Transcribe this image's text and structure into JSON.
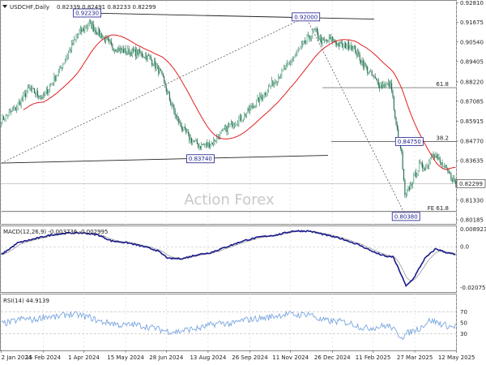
{
  "header": {
    "symbol": "USDCHF,Daily",
    "ohlc": "0.82339 0.82491 0.82233 0.82299"
  },
  "watermark": "Action Forex",
  "colors": {
    "bull": "#7dc6a4",
    "bear": "#1f6b4a",
    "ma": "#e02020",
    "macd": "#1a1a8c",
    "signal": "#9a9a9a",
    "rsi": "#7aa6e0",
    "box": "#1a1a8c",
    "grid": "#999999"
  },
  "chart_data": [
    {
      "type": "candlestick",
      "panel": "price",
      "x_ticks": [
        "2 Jan 2024",
        "15 Feb 2024",
        "1 Apr 2024",
        "15 May 2024",
        "28 Jun 2024",
        "13 Aug 2024",
        "26 Sep 2024",
        "11 Nov 2024",
        "26 Dec 2024",
        "11 Feb 2025",
        "27 Mar 2025",
        "12 May 2025"
      ],
      "y_ticks": [
        "0.92810",
        "0.91675",
        "0.90540",
        "0.89405",
        "0.88220",
        "0.87085",
        "0.85915",
        "0.84770",
        "0.83635",
        "0.82299",
        "0.81330",
        "0.80185"
      ],
      "ylim": [
        0.7995,
        0.9289
      ],
      "last_price": "0.82299",
      "close_anchors": [
        [
          0,
          0.86
        ],
        [
          12,
          0.866
        ],
        [
          25,
          0.878
        ],
        [
          38,
          0.873
        ],
        [
          52,
          0.888
        ],
        [
          60,
          0.898
        ],
        [
          70,
          0.91
        ],
        [
          80,
          0.916
        ],
        [
          90,
          0.91
        ],
        [
          100,
          0.903
        ],
        [
          112,
          0.9
        ],
        [
          125,
          0.899
        ],
        [
          135,
          0.896
        ],
        [
          145,
          0.887
        ],
        [
          153,
          0.872
        ],
        [
          160,
          0.86
        ],
        [
          170,
          0.85
        ],
        [
          180,
          0.845
        ],
        [
          190,
          0.846
        ],
        [
          200,
          0.852
        ],
        [
          210,
          0.858
        ],
        [
          220,
          0.862
        ],
        [
          230,
          0.869
        ],
        [
          240,
          0.876
        ],
        [
          250,
          0.884
        ],
        [
          260,
          0.891
        ],
        [
          270,
          0.9
        ],
        [
          280,
          0.908
        ],
        [
          285,
          0.912
        ],
        [
          292,
          0.905
        ],
        [
          300,
          0.907
        ],
        [
          310,
          0.903
        ],
        [
          318,
          0.904
        ],
        [
          325,
          0.897
        ],
        [
          335,
          0.887
        ],
        [
          345,
          0.88
        ],
        [
          352,
          0.881
        ],
        [
          355,
          0.879
        ],
        [
          358,
          0.86
        ],
        [
          364,
          0.84
        ],
        [
          367,
          0.815
        ],
        [
          372,
          0.822
        ],
        [
          380,
          0.833
        ],
        [
          387,
          0.833
        ],
        [
          392,
          0.842
        ],
        [
          398,
          0.836
        ],
        [
          405,
          0.83
        ],
        [
          410,
          0.826
        ],
        [
          413,
          0.823
        ]
      ],
      "annotations": [
        {
          "label": "0.92230",
          "x": 78,
          "y": 0.9223
        },
        {
          "label": "0.92000",
          "x": 277,
          "y": 0.92
        },
        {
          "label": "0.83740",
          "x": 181,
          "y": 0.8374
        },
        {
          "label": "0.84750",
          "x": 371,
          "y": 0.8475
        },
        {
          "label": "0.80380",
          "x": 368,
          "y": 0.8038
        }
      ],
      "levels": [
        {
          "label": "61.8",
          "y": 0.8788,
          "x0": 292
        },
        {
          "label": "38.2",
          "y": 0.8475,
          "x0": 300
        },
        {
          "label": "FE 61.8",
          "y": 0.8067,
          "x0": 0
        }
      ]
    },
    {
      "type": "line",
      "panel": "macd",
      "title": "MACD(12,26,9) -0.003736 -0.002995",
      "y_ticks": [
        "0.008923",
        "0.0",
        "-0.020759"
      ],
      "ylim": [
        -0.023,
        0.01
      ],
      "macd_anchors": [
        [
          0,
          -0.004
        ],
        [
          15,
          0.002
        ],
        [
          30,
          0.004
        ],
        [
          45,
          0.006
        ],
        [
          60,
          0.007
        ],
        [
          75,
          0.007
        ],
        [
          88,
          0.006
        ],
        [
          100,
          0.003
        ],
        [
          115,
          0.002
        ],
        [
          130,
          0.0
        ],
        [
          142,
          -0.002
        ],
        [
          152,
          -0.006
        ],
        [
          165,
          -0.006
        ],
        [
          178,
          -0.004
        ],
        [
          190,
          -0.003
        ],
        [
          205,
          0.0
        ],
        [
          220,
          0.003
        ],
        [
          235,
          0.005
        ],
        [
          250,
          0.006
        ],
        [
          265,
          0.008
        ],
        [
          280,
          0.008
        ],
        [
          295,
          0.006
        ],
        [
          310,
          0.004
        ],
        [
          325,
          0.001
        ],
        [
          340,
          -0.003
        ],
        [
          350,
          -0.005
        ],
        [
          356,
          -0.005
        ],
        [
          362,
          -0.012
        ],
        [
          368,
          -0.02
        ],
        [
          375,
          -0.016
        ],
        [
          385,
          -0.006
        ],
        [
          395,
          -0.001
        ],
        [
          405,
          -0.003
        ],
        [
          413,
          -0.004
        ]
      ]
    },
    {
      "type": "line",
      "panel": "rsi",
      "title": "RSI(14) 44.9139",
      "y_ticks": [
        "70",
        "50",
        "30"
      ],
      "ylim": [
        0,
        100
      ],
      "rsi_anchors": [
        [
          0,
          48
        ],
        [
          10,
          52
        ],
        [
          20,
          58
        ],
        [
          30,
          55
        ],
        [
          40,
          62
        ],
        [
          50,
          60
        ],
        [
          60,
          66
        ],
        [
          70,
          64
        ],
        [
          80,
          60
        ],
        [
          90,
          52
        ],
        [
          100,
          50
        ],
        [
          110,
          45
        ],
        [
          120,
          47
        ],
        [
          130,
          44
        ],
        [
          140,
          40
        ],
        [
          150,
          35
        ],
        [
          160,
          34
        ],
        [
          170,
          38
        ],
        [
          180,
          40
        ],
        [
          190,
          46
        ],
        [
          200,
          50
        ],
        [
          210,
          48
        ],
        [
          220,
          55
        ],
        [
          230,
          57
        ],
        [
          240,
          59
        ],
        [
          250,
          63
        ],
        [
          260,
          66
        ],
        [
          270,
          64
        ],
        [
          280,
          67
        ],
        [
          290,
          55
        ],
        [
          300,
          53
        ],
        [
          310,
          52
        ],
        [
          320,
          48
        ],
        [
          330,
          40
        ],
        [
          340,
          42
        ],
        [
          350,
          45
        ],
        [
          355,
          42
        ],
        [
          360,
          30
        ],
        [
          365,
          25
        ],
        [
          370,
          32
        ],
        [
          380,
          40
        ],
        [
          390,
          55
        ],
        [
          400,
          48
        ],
        [
          410,
          42
        ],
        [
          413,
          45
        ]
      ]
    }
  ]
}
